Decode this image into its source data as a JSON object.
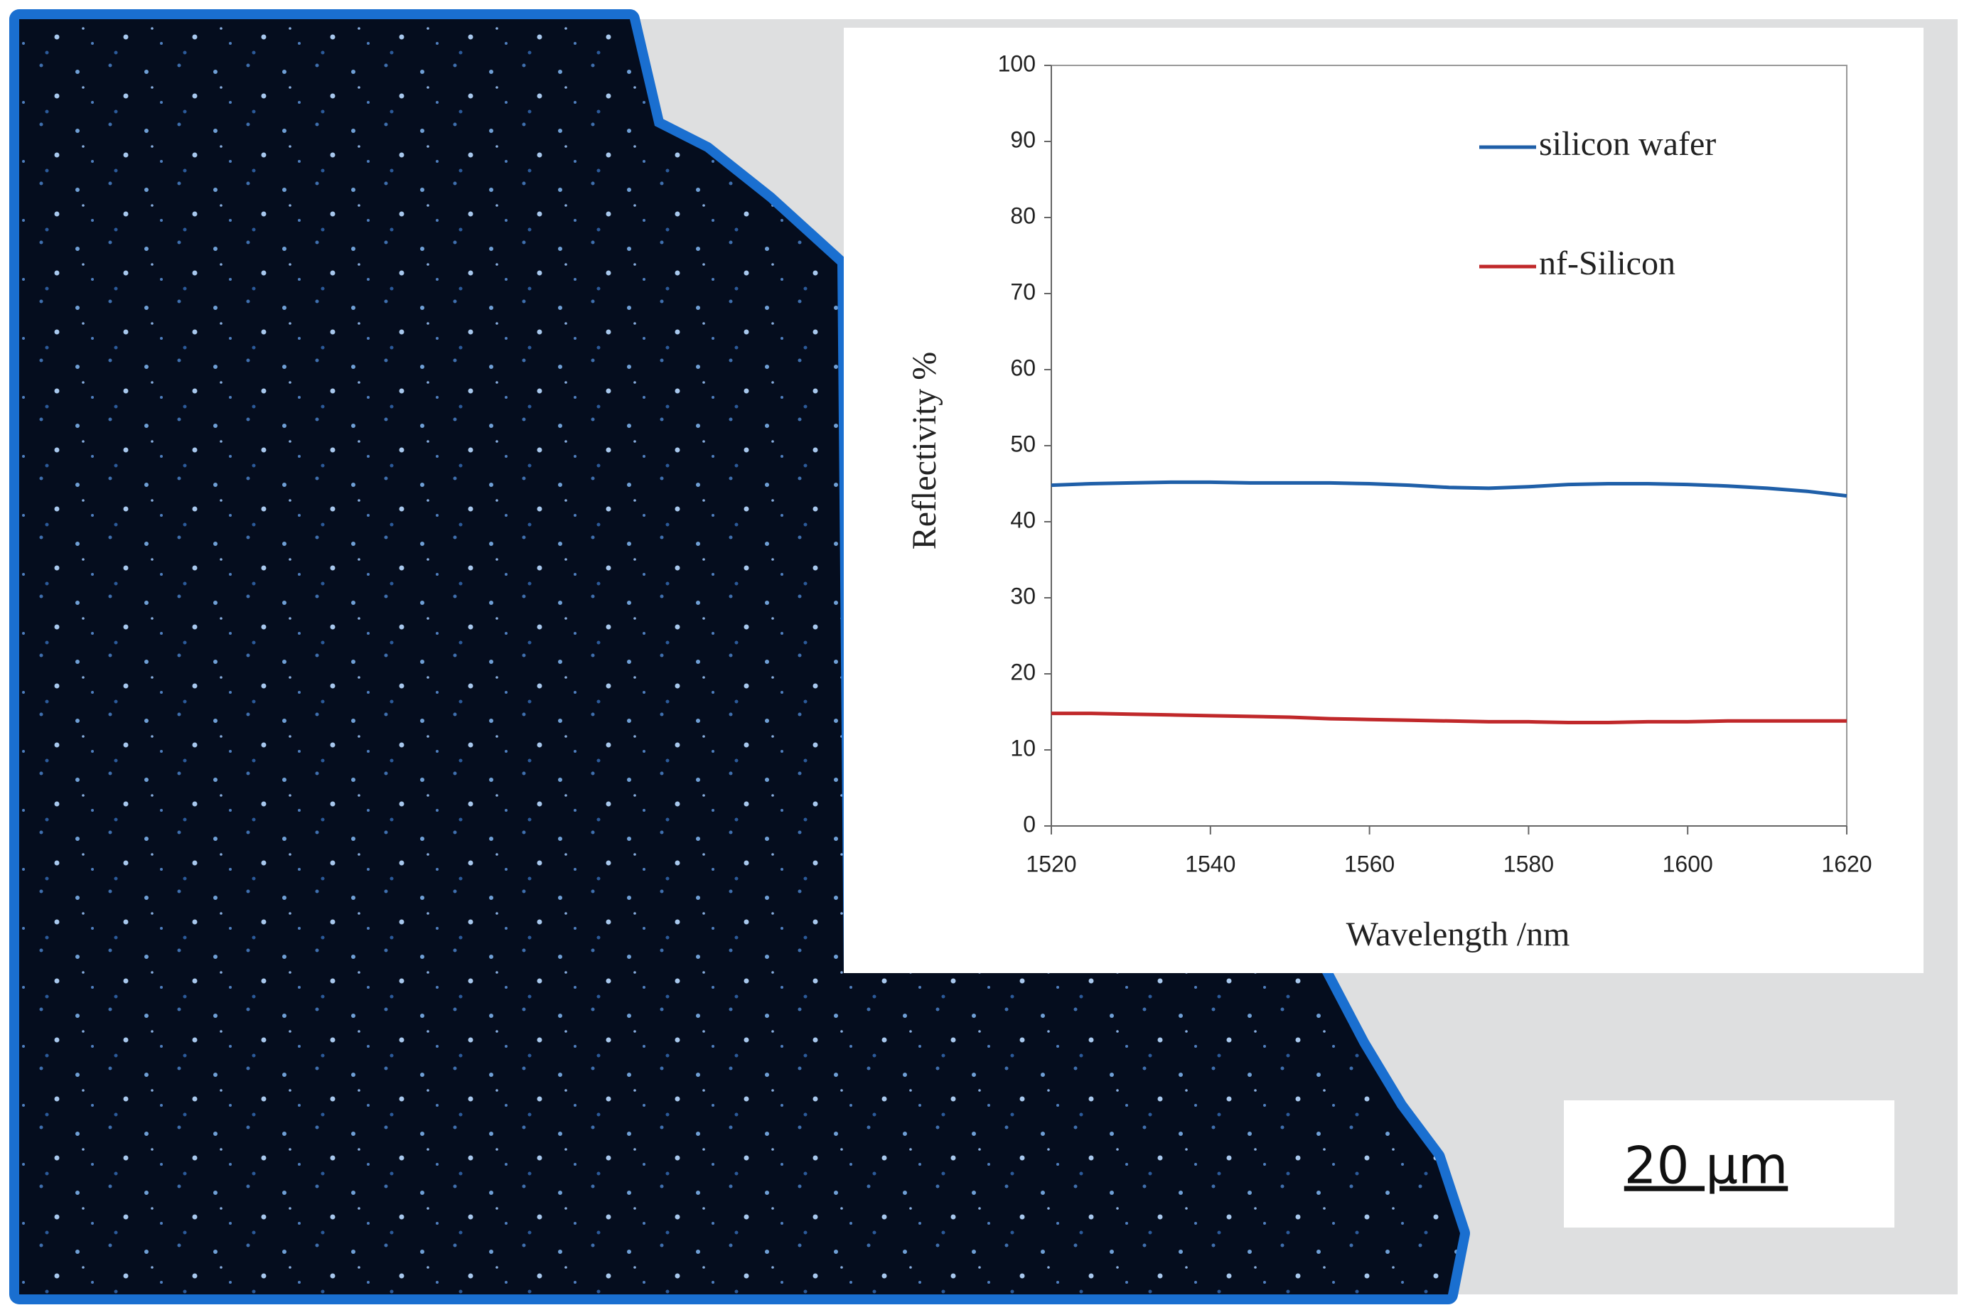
{
  "chart_data": {
    "type": "line",
    "x_label": "Wavelength  /nm",
    "y_label": "Reflectivity %",
    "x": [
      1520,
      1525,
      1530,
      1535,
      1540,
      1545,
      1550,
      1555,
      1560,
      1565,
      1570,
      1575,
      1580,
      1585,
      1590,
      1595,
      1600,
      1605,
      1610,
      1615,
      1620
    ],
    "series": [
      {
        "name": "silicon wafer",
        "color": "#1f5fa8",
        "values": [
          44.8,
          45,
          45.1,
          45.2,
          45.2,
          45.1,
          45.1,
          45.1,
          45,
          44.8,
          44.5,
          44.4,
          44.6,
          44.9,
          45,
          45,
          44.9,
          44.7,
          44.4,
          44,
          43.4
        ]
      },
      {
        "name": "nf-Silicon",
        "color": "#c0282a",
        "values": [
          14.8,
          14.8,
          14.7,
          14.6,
          14.5,
          14.4,
          14.3,
          14.1,
          14,
          13.9,
          13.8,
          13.7,
          13.7,
          13.6,
          13.6,
          13.7,
          13.7,
          13.8,
          13.8,
          13.8,
          13.8
        ]
      }
    ],
    "xlim": [
      1520,
      1620
    ],
    "xticks": [
      1520,
      1540,
      1560,
      1580,
      1600,
      1620
    ],
    "ylim": [
      0,
      100
    ],
    "yticks": [
      0,
      10,
      20,
      30,
      40,
      50,
      60,
      70,
      80,
      90,
      100
    ],
    "grid": false,
    "legend": "upper right"
  },
  "scale_bar": "20 μm"
}
